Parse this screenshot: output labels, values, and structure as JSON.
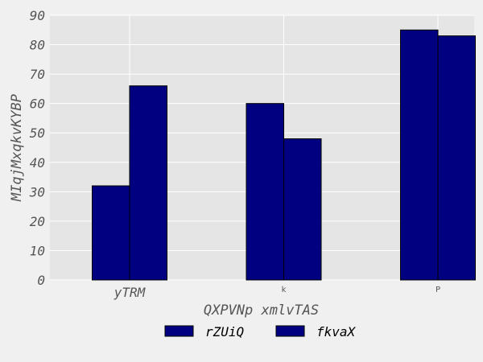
{
  "chart_data": {
    "type": "bar",
    "categories": [
      "yTRM",
      "k",
      "P"
    ],
    "series": [
      {
        "name": "rZUiQ",
        "values": [
          32,
          60,
          85
        ],
        "color": "#000080"
      },
      {
        "name": "fkvaX",
        "values": [
          66,
          48,
          83
        ],
        "color": "#000080"
      }
    ],
    "xlabel": "QXPVNp xmlvTAS",
    "ylabel": "MIqjMxqkvKYBP",
    "ylim": [
      0,
      90
    ],
    "yticks": [
      0,
      10,
      20,
      30,
      40,
      50,
      60,
      70,
      80,
      90
    ],
    "grid": true,
    "legend_position": "bottom-center",
    "colors": {
      "background": "#f0f0f0",
      "plot_background": "#e5e5e5",
      "grid": "#ffffff"
    }
  }
}
